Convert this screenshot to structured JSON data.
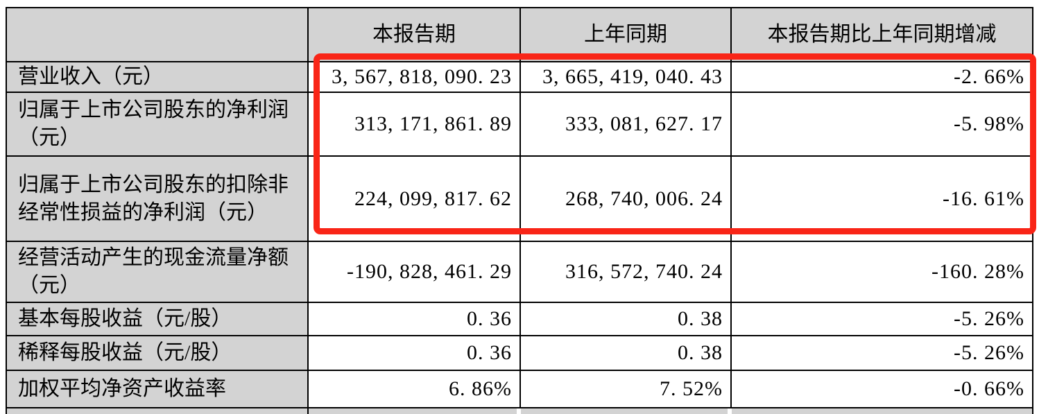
{
  "table": {
    "headers": [
      "",
      "本报告期",
      "上年同期",
      "本报告期比上年同期增减"
    ],
    "rows": [
      {
        "label": "营业收入（元）",
        "current": "3,567,818,090.23",
        "prior": "3,665,419,040.43",
        "change": "-2.66%"
      },
      {
        "label": "归属于上市公司股东的净利润（元）",
        "current": "313,171,861.89",
        "prior": "333,081,627.17",
        "change": "-5.98%"
      },
      {
        "label": "归属于上市公司股东的扣除非经常性损益的净利润（元）",
        "current": "224,099,817.62",
        "prior": "268,740,006.24",
        "change": "-16.61%"
      },
      {
        "label": "经营活动产生的现金流量净额（元）",
        "current": "-190,828,461.29",
        "prior": "316,572,740.24",
        "change": "-160.28%"
      },
      {
        "label": "基本每股收益（元/股）",
        "current": "0.36",
        "prior": "0.38",
        "change": "-5.26%"
      },
      {
        "label": "稀释每股收益（元/股）",
        "current": "0.36",
        "prior": "0.38",
        "change": "-5.26%"
      },
      {
        "label": "加权平均净资产收益率",
        "current": "6.86%",
        "prior": "7.52%",
        "change": "-0.66%"
      }
    ]
  },
  "annotation": {
    "type": "red-highlight-rectangle",
    "highlights": "data cells of rows 1-3 (revenue and net profit figures)",
    "color": "#f92517"
  },
  "colors": {
    "header_bg": "#d3d3d3",
    "label_bg": "#d3d3d3",
    "border": "#000000",
    "value_bg": "#ffffff"
  }
}
